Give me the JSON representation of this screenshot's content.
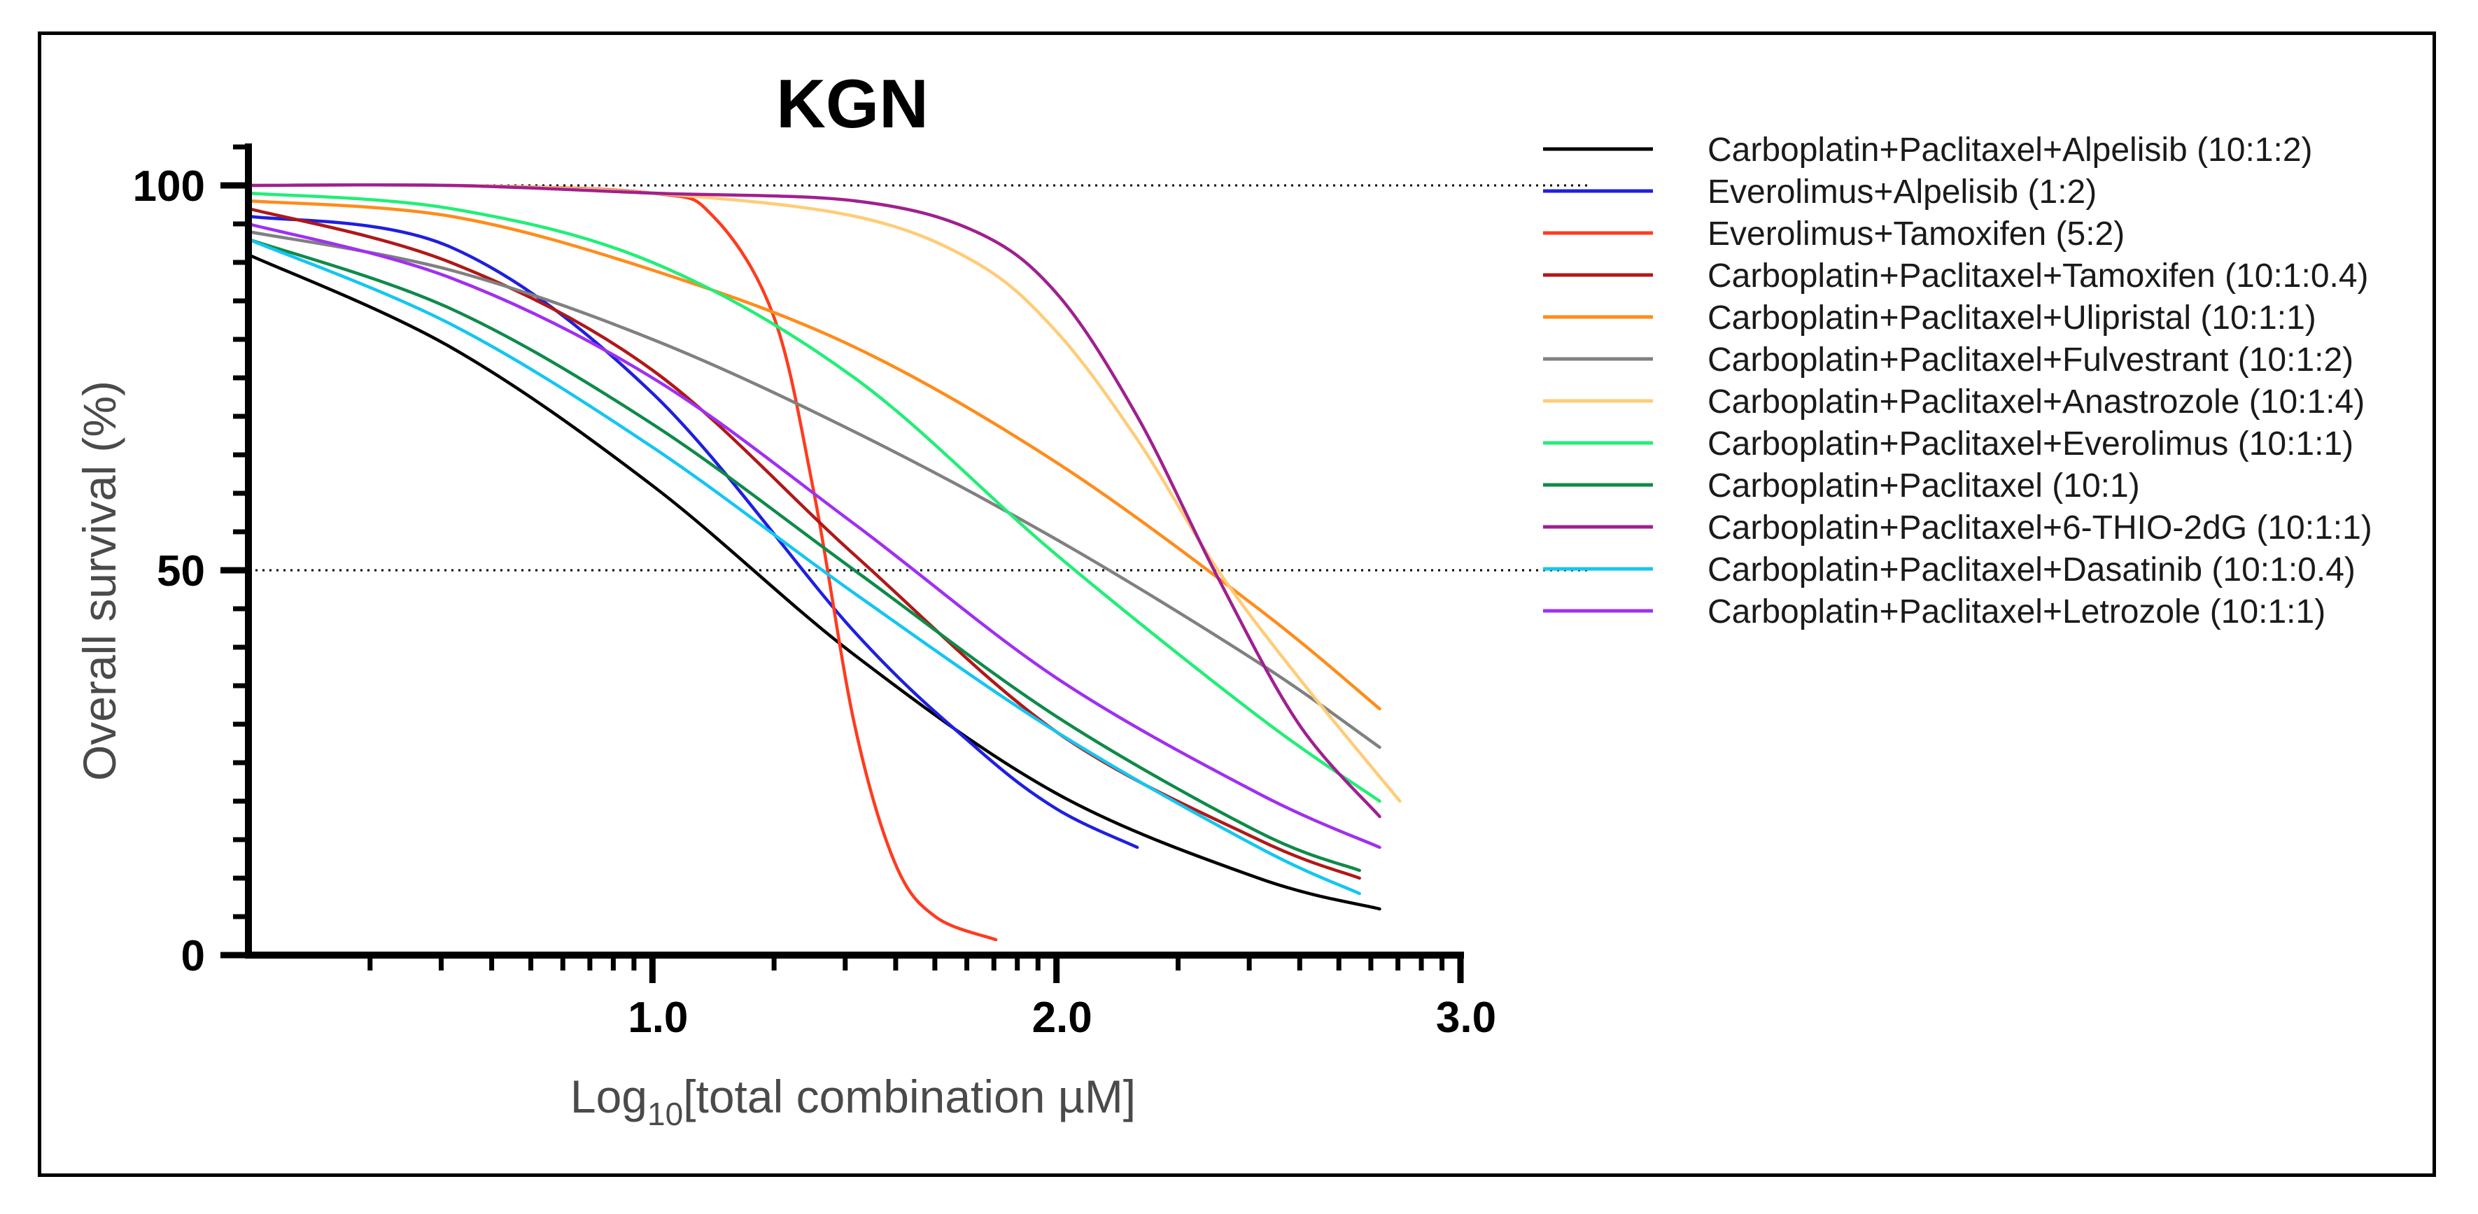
{
  "chart_data": {
    "type": "line",
    "title": "KGN",
    "xlabel": "Log10[total combination µM]",
    "xlabel_parts": {
      "base": "Log",
      "sub": "10",
      "rest": "[total combination µM]"
    },
    "ylabel": "Overall survival (%)",
    "xlim": [
      0,
      3.0
    ],
    "ylim": [
      0,
      100
    ],
    "x_ticks": [
      "1.0",
      "2.0",
      "3.0"
    ],
    "y_ticks": [
      "0",
      "50",
      "100"
    ],
    "reference_lines_y": [
      50,
      100
    ],
    "legend_position": "right",
    "grid": false,
    "series": [
      {
        "name": "Carboplatin+Paclitaxel+Alpelisib (10:1:2)",
        "color": "#000000",
        "x": [
          0.0,
          0.5,
          1.0,
          1.5,
          2.0,
          2.5,
          2.8
        ],
        "y": [
          91,
          79,
          61,
          39,
          21,
          10,
          6
        ]
      },
      {
        "name": "Everolimus+Alpelisib (1:2)",
        "color": "#1f1fe0",
        "x": [
          0.0,
          0.5,
          1.0,
          1.5,
          1.8,
          2.0,
          2.2
        ],
        "y": [
          96,
          92,
          73,
          42,
          27,
          19,
          14
        ]
      },
      {
        "name": "Everolimus+Tamoxifen (5:2)",
        "color": "#ff3b1f",
        "x": [
          0.0,
          0.5,
          1.0,
          1.15,
          1.3,
          1.4,
          1.5,
          1.6,
          1.7,
          1.85
        ],
        "y": [
          100,
          100,
          99,
          96,
          83,
          60,
          30,
          12,
          5,
          2
        ]
      },
      {
        "name": "Carboplatin+Paclitaxel+Tamoxifen (10:1:0.4)",
        "color": "#b01818",
        "x": [
          0.0,
          0.5,
          1.0,
          1.5,
          2.0,
          2.5,
          2.75
        ],
        "y": [
          97,
          90,
          76,
          52,
          29,
          15,
          10
        ]
      },
      {
        "name": "Carboplatin+Paclitaxel+Ulipristal (10:1:1)",
        "color": "#ff8c1a",
        "x": [
          0.0,
          0.5,
          1.0,
          1.5,
          2.0,
          2.5,
          2.8
        ],
        "y": [
          98,
          96,
          89,
          79,
          64,
          45,
          32
        ]
      },
      {
        "name": "Carboplatin+Paclitaxel+Fulvestrant (10:1:2)",
        "color": "#808080",
        "x": [
          0.0,
          0.5,
          1.0,
          1.5,
          2.0,
          2.5,
          2.8
        ],
        "y": [
          94,
          89,
          80,
          68,
          54,
          38,
          27
        ]
      },
      {
        "name": "Carboplatin+Paclitaxel+Anastrozole (10:1:4)",
        "color": "#ffcc77",
        "x": [
          0.0,
          0.5,
          1.0,
          1.5,
          1.8,
          2.0,
          2.2,
          2.4,
          2.6,
          2.85
        ],
        "y": [
          100,
          100,
          99,
          96,
          90,
          81,
          67,
          50,
          36,
          20
        ]
      },
      {
        "name": "Carboplatin+Paclitaxel+Everolimus (10:1:1)",
        "color": "#22ee77",
        "x": [
          0.0,
          0.5,
          1.0,
          1.5,
          2.0,
          2.5,
          2.8
        ],
        "y": [
          99,
          97,
          90,
          75,
          52,
          31,
          20
        ]
      },
      {
        "name": "Carboplatin+Paclitaxel (10:1)",
        "color": "#0f8a4a",
        "x": [
          0.0,
          0.5,
          1.0,
          1.5,
          2.0,
          2.5,
          2.75
        ],
        "y": [
          93,
          84,
          69,
          50,
          31,
          16,
          11
        ]
      },
      {
        "name": "Carboplatin+Paclitaxel+6-THIO-2dG (10:1:1)",
        "color": "#a0208f",
        "x": [
          0.0,
          0.5,
          1.0,
          1.5,
          1.8,
          2.0,
          2.2,
          2.4,
          2.6,
          2.8
        ],
        "y": [
          100,
          100,
          99,
          98,
          94,
          86,
          70,
          49,
          30,
          18
        ]
      },
      {
        "name": "Carboplatin+Paclitaxel+Dasatinib (10:1:0.4)",
        "color": "#14c6f0",
        "x": [
          0.0,
          0.5,
          1.0,
          1.5,
          2.0,
          2.5,
          2.75
        ],
        "y": [
          93,
          82,
          66,
          47,
          29,
          14,
          8
        ]
      },
      {
        "name": "Carboplatin+Paclitaxel+Letrozole (10:1:1)",
        "color": "#a030f0",
        "x": [
          0.0,
          0.5,
          1.0,
          1.5,
          2.0,
          2.5,
          2.8
        ],
        "y": [
          95,
          88,
          75,
          56,
          36,
          21,
          14
        ]
      }
    ]
  }
}
